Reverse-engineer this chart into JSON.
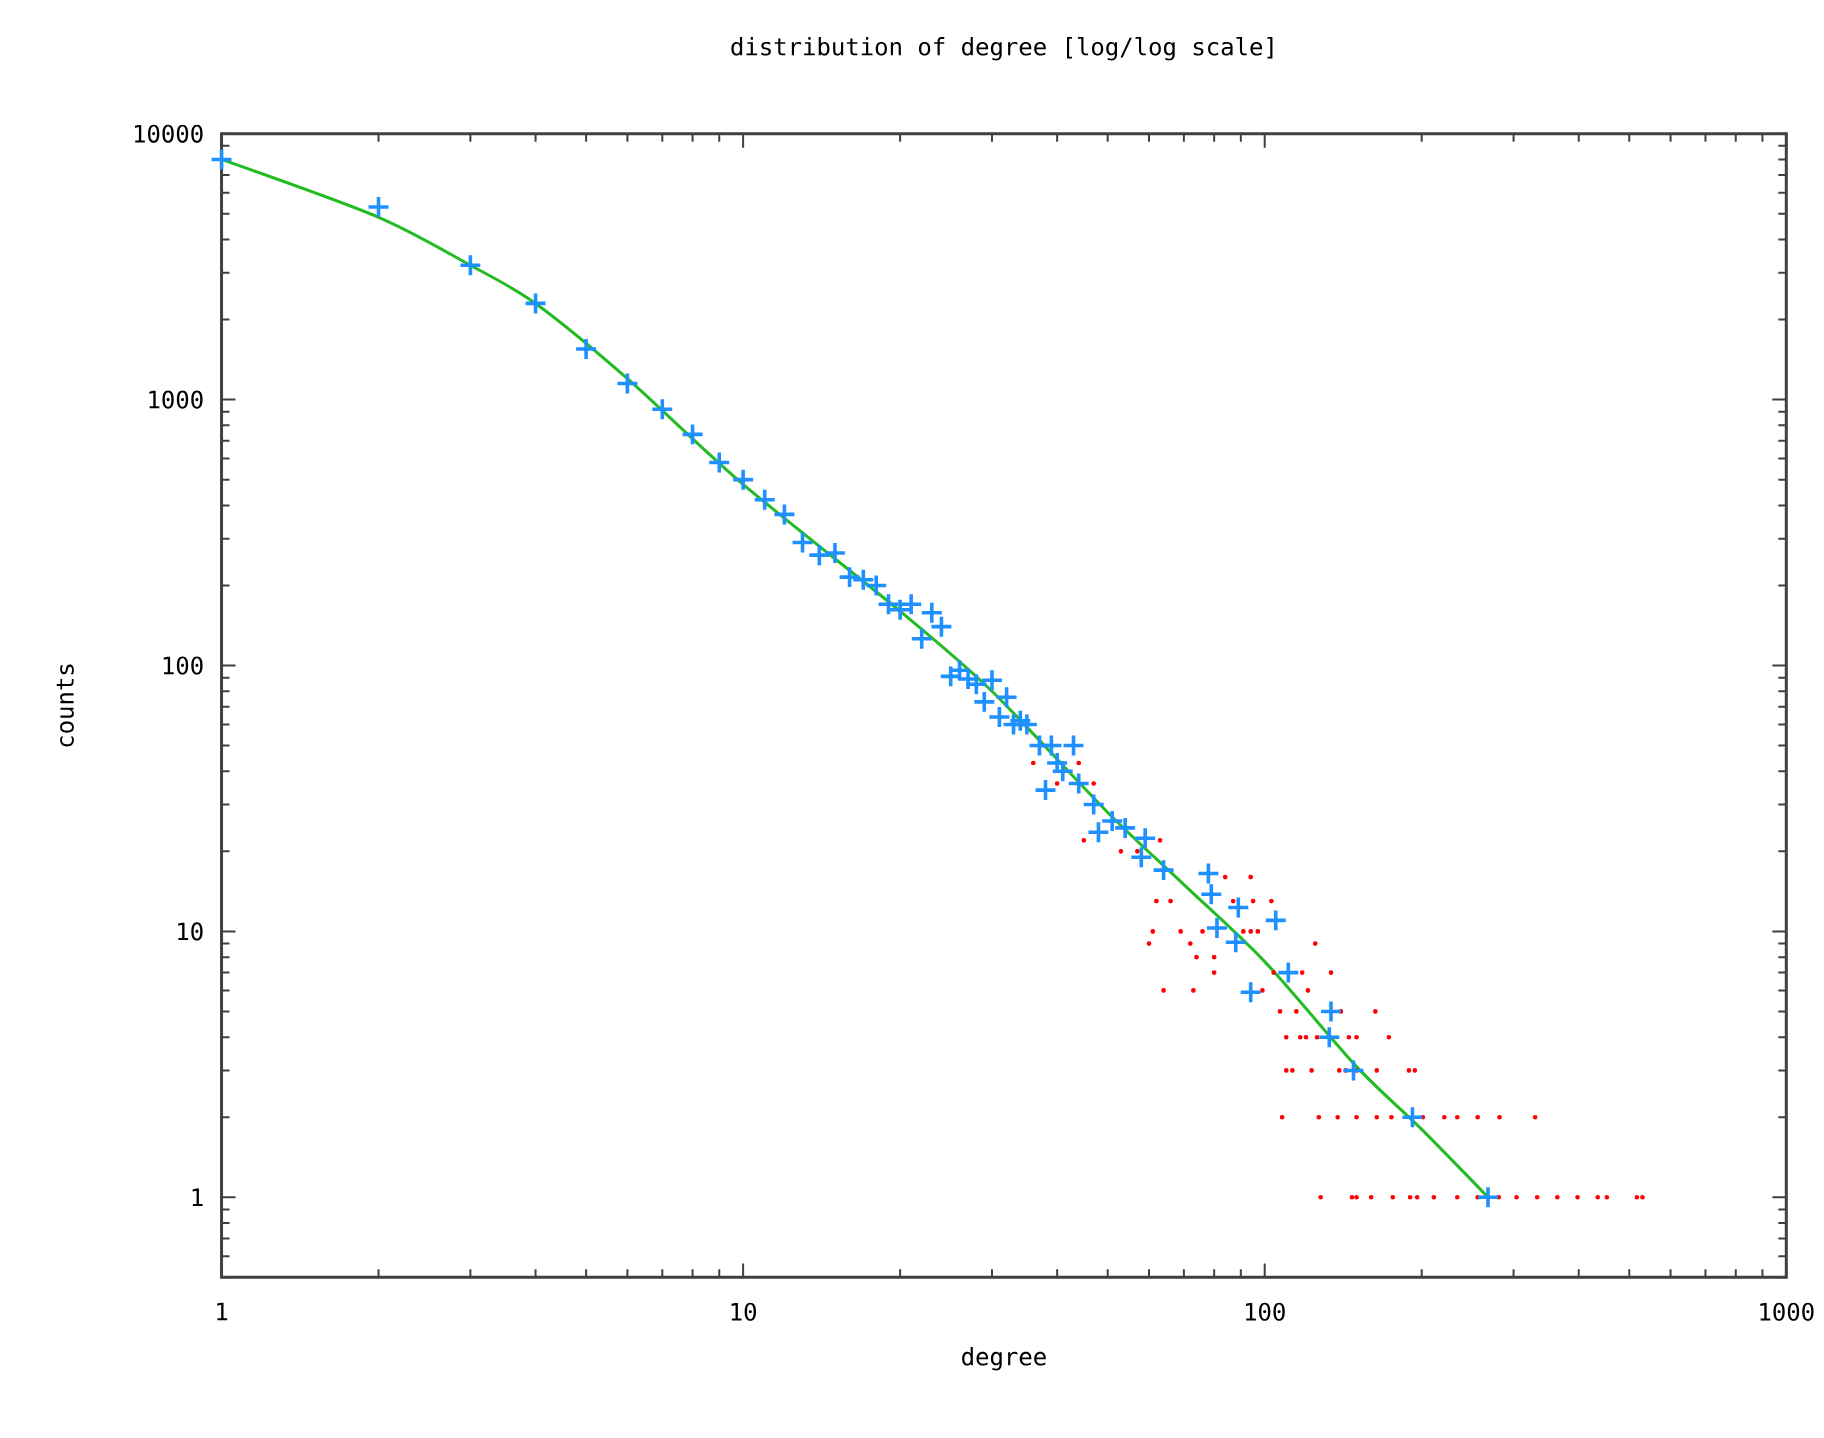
{
  "chart_data": {
    "type": "scatter",
    "title": "distribution of degree [log/log scale]",
    "xlabel": "degree",
    "ylabel": "counts",
    "log": "xy",
    "grid": false,
    "xlim": [
      1,
      1000
    ],
    "xticks": [
      1,
      10,
      100,
      1000
    ],
    "ylim": [
      0.5,
      10000
    ],
    "yticks": [
      1,
      10,
      100,
      1000,
      10000
    ],
    "series": [
      {
        "color": "#ff0000",
        "marker": "circle",
        "x": [
          128,
          147,
          150,
          160,
          176,
          190,
          196,
          211,
          234,
          256,
          281,
          304,
          333,
          364,
          398,
          435,
          453,
          517,
          530,
          108,
          127,
          138,
          150,
          164,
          175,
          201,
          221,
          234,
          256,
          282,
          330,
          110,
          113,
          123,
          139,
          143,
          150,
          164,
          189,
          194,
          110,
          117,
          120,
          126,
          145,
          150,
          173,
          107,
          115,
          140,
          163,
          64,
          73,
          99,
          121,
          80,
          104,
          118,
          134,
          74,
          80,
          60,
          72,
          125,
          61,
          69,
          76,
          91,
          94,
          97,
          62,
          66,
          87,
          95,
          103,
          84,
          94,
          53,
          57,
          45,
          63,
          36,
          44,
          40,
          47
        ],
        "values": [
          1,
          1,
          1,
          1,
          1,
          1,
          1,
          1,
          1,
          1,
          1,
          1,
          1,
          1,
          1,
          1,
          1,
          1,
          1,
          2,
          2,
          2,
          2,
          2,
          2,
          2,
          2,
          2,
          2,
          2,
          2,
          3,
          3,
          3,
          3,
          3,
          3,
          3,
          3,
          3,
          4,
          4,
          4,
          4,
          4,
          4,
          4,
          5,
          5,
          5,
          5,
          6,
          6,
          6,
          6,
          7,
          7,
          7,
          7,
          8,
          8,
          9,
          9,
          9,
          10,
          10,
          10,
          10,
          10,
          10,
          13,
          13,
          13,
          13,
          13,
          16,
          16,
          20,
          20,
          22,
          22,
          43,
          43,
          36,
          36
        ]
      },
      {
        "color": "#1e90ff",
        "marker": "cross",
        "x": [
          1,
          2,
          3,
          4,
          5,
          6,
          7,
          8,
          9,
          10,
          11,
          12,
          13,
          14,
          15,
          16,
          17,
          18,
          19,
          20,
          21,
          22,
          23,
          24,
          25,
          26,
          27,
          28,
          29,
          30,
          31,
          32,
          33,
          34,
          35,
          37,
          38,
          39,
          40,
          41,
          43,
          44,
          47,
          48,
          51,
          54,
          58,
          59,
          64,
          78,
          79,
          81,
          88,
          89,
          94,
          105,
          111,
          133,
          134,
          148,
          192,
          268
        ],
        "values": [
          8000,
          5300,
          3200,
          2300,
          1550,
          1150,
          920,
          740,
          580,
          500,
          420,
          370,
          290,
          260,
          265,
          215,
          210,
          200,
          170,
          162,
          170,
          126,
          158,
          140,
          91,
          96,
          89,
          85,
          73,
          88,
          64,
          76,
          60,
          62,
          60,
          50,
          34,
          50,
          43,
          40,
          50,
          36,
          30,
          23.6,
          26,
          24.5,
          19,
          22.4,
          17,
          16.5,
          13.8,
          10.3,
          9.1,
          12.3,
          5.9,
          11,
          7,
          4,
          5,
          3,
          2,
          1
        ]
      },
      {
        "type": "line",
        "color": "#22bb22",
        "marker": "none",
        "line_style": "solid",
        "x": [
          1,
          2,
          3,
          4,
          6,
          10,
          20,
          30,
          50,
          70,
          100,
          150,
          200,
          268
        ],
        "values": [
          8000,
          4850,
          3200,
          2300,
          1200,
          480,
          160,
          80,
          28,
          15,
          7.7,
          3.1,
          1.8,
          1
        ]
      }
    ]
  }
}
